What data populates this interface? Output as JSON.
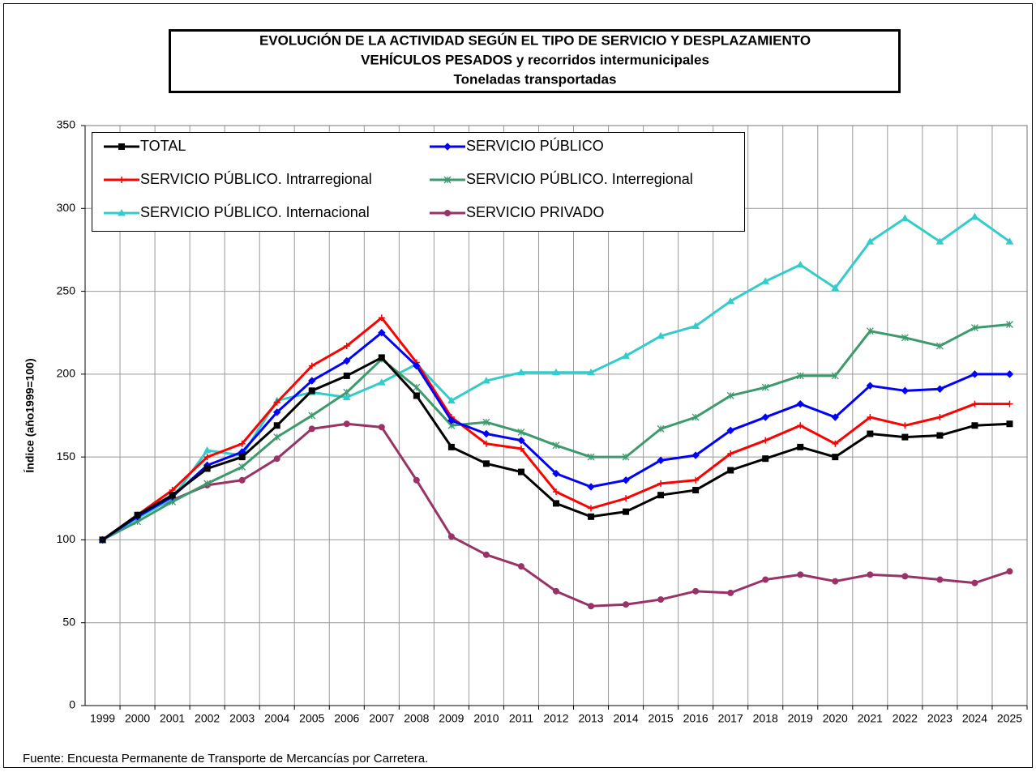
{
  "chart_data": {
    "type": "line",
    "title": [
      "EVOLUCIÓN  DE  LA  ACTIVIDAD  SEGÚN  EL  TIPO  DE  SERVICIO  Y  DESPLAZAMIENTO",
      "VEHÍCULOS   PESADOS  y  recorridos  intermunicipales",
      "Toneladas transportadas"
    ],
    "y_label": "Índice (año1999=100)",
    "source": "Fuente: Encuesta Permanente de Transporte de Mercancías por Carretera.",
    "categories": [
      "1999",
      "2000",
      "2001",
      "2002",
      "2003",
      "2004",
      "2005",
      "2006",
      "2007",
      "2008",
      "2009",
      "2010",
      "2011",
      "2012",
      "2013",
      "2014",
      "2015",
      "2016",
      "2017",
      "2018",
      "2019",
      "2020",
      "2021",
      "2022",
      "2023",
      "2024",
      "2025"
    ],
    "ylim": [
      0,
      350
    ],
    "yticks": [
      0,
      50,
      100,
      150,
      200,
      250,
      300,
      350
    ],
    "grid": true,
    "series": [
      {
        "name": "TOTAL",
        "color": "#000000",
        "marker": "square",
        "values": [
          100,
          115,
          127,
          143,
          150,
          169,
          190,
          199,
          210,
          187,
          156,
          146,
          141,
          122,
          114,
          117,
          127,
          130,
          142,
          149,
          156,
          150,
          164,
          162,
          163,
          169,
          170
        ]
      },
      {
        "name": "SERVICIO PÚBLICO",
        "color": "#0000ff",
        "marker": "diamond",
        "values": [
          100,
          114,
          126,
          145,
          153,
          177,
          196,
          208,
          225,
          205,
          172,
          164,
          160,
          140,
          132,
          136,
          148,
          151,
          166,
          174,
          182,
          174,
          193,
          190,
          191,
          200,
          200
        ]
      },
      {
        "name": "SERVICIO PÚBLICO. Intrarregional",
        "color": "#ff0000",
        "marker": "plus",
        "values": [
          100,
          115,
          130,
          150,
          158,
          183,
          205,
          217,
          234,
          207,
          174,
          158,
          155,
          129,
          119,
          125,
          134,
          136,
          152,
          160,
          169,
          158,
          174,
          169,
          174,
          182,
          182
        ]
      },
      {
        "name": "SERVICIO PÚBLICO. Interregional",
        "color": "#3d9a6c",
        "marker": "star",
        "values": [
          100,
          111,
          123,
          134,
          144,
          162,
          175,
          189,
          209,
          192,
          169,
          171,
          165,
          157,
          150,
          150,
          167,
          174,
          187,
          192,
          199,
          199,
          226,
          222,
          217,
          228,
          230
        ]
      },
      {
        "name": "SERVICIO PÚBLICO. Internacional",
        "color": "#33cccc",
        "marker": "triangle",
        "values": [
          100,
          113,
          125,
          154,
          151,
          184,
          189,
          186,
          195,
          206,
          184,
          196,
          201,
          201,
          201,
          211,
          223,
          229,
          244,
          256,
          266,
          252,
          280,
          294,
          280,
          295,
          280
        ]
      },
      {
        "name": "SERVICIO PRIVADO",
        "color": "#993366",
        "marker": "circle",
        "values": [
          100,
          115,
          124,
          133,
          136,
          149,
          167,
          170,
          168,
          136,
          102,
          91,
          84,
          69,
          60,
          61,
          64,
          69,
          68,
          76,
          79,
          75,
          79,
          78,
          76,
          74,
          81
        ]
      }
    ]
  }
}
